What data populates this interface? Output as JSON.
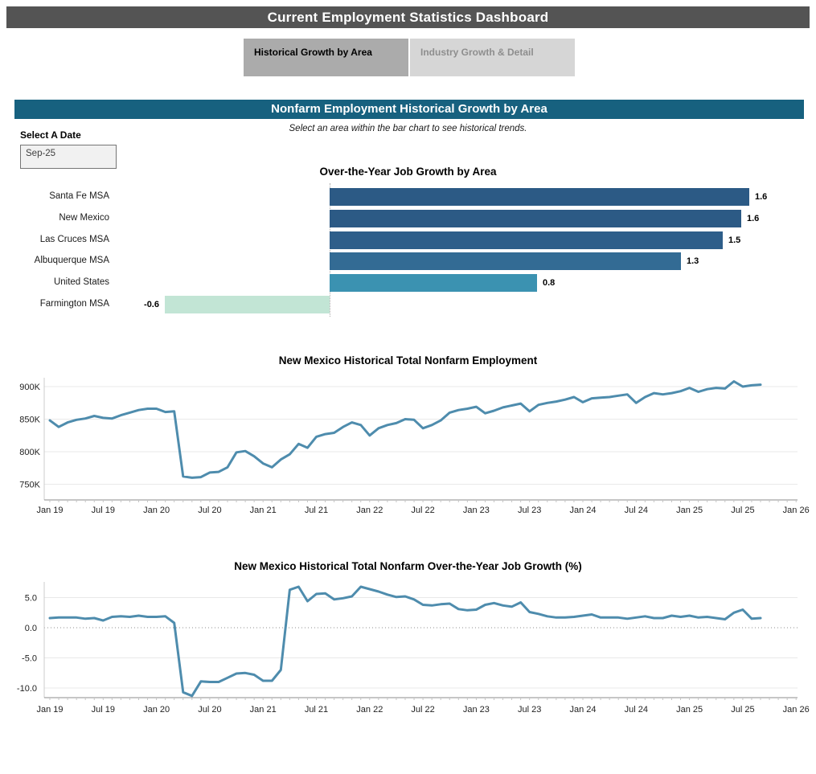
{
  "header": {
    "title": "Current Employment Statistics Dashboard"
  },
  "tabs": [
    {
      "label": "Historical Growth by Area",
      "active": true
    },
    {
      "label": "Industry Growth & Detail",
      "active": false
    }
  ],
  "section_banner": "Nonfarm Employment Historical Growth by Area",
  "date_filter": {
    "label": "Select A Date",
    "value": "Sep-25"
  },
  "instruction": "Select an area within the bar chart to see historical trends.",
  "colors": {
    "header_bg": "#545454",
    "banner_bg": "#17617f",
    "tab_active_bg": "#ababab",
    "tab_inactive_bg": "#d6d6d6",
    "line_stroke": "#4e8cad",
    "gridline": "#e9e9e9",
    "axis_line": "#8c8c8c",
    "bar_positive_dark": "#2c5a85",
    "bar_positive_mid": "#3b92b1",
    "bar_negative_light": "#c2e5d5"
  },
  "chart_data": [
    {
      "type": "bar",
      "title": "Over-the-Year Job Growth by Area",
      "categories": [
        "Santa Fe MSA",
        "New Mexico",
        "Las Cruces MSA",
        "Albuquerque MSA",
        "United States",
        "Farmington MSA"
      ],
      "values": [
        1.6,
        1.6,
        1.5,
        1.3,
        0.8,
        -0.6
      ],
      "values_precise": [
        1.6,
        1.57,
        1.5,
        1.34,
        0.79,
        -0.63
      ],
      "bar_colors": [
        "#2c5a85",
        "#2c5a85",
        "#2e5e8a",
        "#336b94",
        "#3b92b1",
        "#c2e5d5"
      ],
      "xlim": [
        -0.7,
        1.7
      ],
      "legend": "none",
      "grid": "zero-line-dotted"
    },
    {
      "type": "line",
      "title": "New Mexico Historical Total Nonfarm Employment",
      "x_start": "Jan 2019",
      "x_end": "Sep 2025",
      "x_tick_labels": [
        "Jan 19",
        "Jul 19",
        "Jan 20",
        "Jul 20",
        "Jan 21",
        "Jul 21",
        "Jan 22",
        "Jul 22",
        "Jan 23",
        "Jul 23",
        "Jan 24",
        "Jul 24",
        "Jan 25",
        "Jul 25",
        "Jan 26"
      ],
      "x_tick_months": [
        0,
        6,
        12,
        18,
        24,
        30,
        36,
        42,
        48,
        54,
        60,
        66,
        72,
        78,
        84
      ],
      "yticks": [
        {
          "value": 900,
          "label": "900K"
        },
        {
          "value": 850,
          "label": "850K"
        },
        {
          "value": 800,
          "label": "800K"
        },
        {
          "value": 750,
          "label": "750K"
        }
      ],
      "ylim": [
        725,
        920
      ],
      "unit": "thousands of jobs",
      "values": [
        848,
        838,
        845,
        849,
        851,
        855,
        852,
        851,
        856,
        860,
        864,
        866,
        866,
        861,
        862,
        762,
        760,
        761,
        768,
        769,
        776,
        799,
        801,
        793,
        782,
        776,
        788,
        796,
        812,
        806,
        823,
        827,
        829,
        838,
        845,
        841,
        825,
        836,
        841,
        844,
        850,
        849,
        836,
        841,
        848,
        860,
        864,
        866,
        869,
        859,
        863,
        868,
        871,
        874,
        862,
        872,
        875,
        877,
        880,
        884,
        876,
        882,
        883,
        884,
        886,
        888,
        875,
        884,
        890,
        888,
        890,
        893,
        898,
        892,
        896,
        898,
        897,
        908,
        900,
        902,
        903
      ]
    },
    {
      "type": "line",
      "title": "New Mexico Historical Total Nonfarm Over-the-Year Job Growth (%)",
      "x_start": "Jan 2019",
      "x_end": "Sep 2025",
      "x_tick_labels": [
        "Jan 19",
        "Jul 19",
        "Jan 20",
        "Jul 20",
        "Jan 21",
        "Jul 21",
        "Jan 22",
        "Jul 22",
        "Jan 23",
        "Jul 23",
        "Jan 24",
        "Jul 24",
        "Jan 25",
        "Jul 25",
        "Jan 26"
      ],
      "x_tick_months": [
        0,
        6,
        12,
        18,
        24,
        30,
        36,
        42,
        48,
        54,
        60,
        66,
        72,
        78,
        84
      ],
      "yticks": [
        {
          "value": 5,
          "label": "5.0"
        },
        {
          "value": 0,
          "label": "0.0"
        },
        {
          "value": -5,
          "label": "-5.0"
        },
        {
          "value": -10,
          "label": "-10.0"
        }
      ],
      "ylim": [
        -11.8,
        7.3
      ],
      "unit": "percent",
      "zero_line": "dotted",
      "values": [
        1.6,
        1.7,
        1.7,
        1.7,
        1.5,
        1.6,
        1.2,
        1.8,
        1.9,
        1.8,
        2.0,
        1.8,
        1.8,
        1.9,
        0.8,
        -10.7,
        -11.3,
        -8.9,
        -9.0,
        -9.0,
        -8.3,
        -7.6,
        -7.5,
        -7.8,
        -8.8,
        -8.8,
        -7.0,
        6.3,
        6.8,
        4.4,
        5.6,
        5.7,
        4.7,
        4.9,
        5.2,
        6.8,
        6.4,
        6.0,
        5.5,
        5.1,
        5.2,
        4.7,
        3.8,
        3.7,
        3.9,
        4.0,
        3.1,
        2.9,
        3.0,
        3.8,
        4.1,
        3.7,
        3.5,
        4.2,
        2.6,
        2.3,
        1.9,
        1.7,
        1.7,
        1.8,
        2.0,
        2.2,
        1.7,
        1.7,
        1.7,
        1.5,
        1.7,
        1.9,
        1.6,
        1.6,
        2.0,
        1.8,
        2.0,
        1.7,
        1.8,
        1.6,
        1.4,
        2.5,
        3.0,
        1.5,
        1.6
      ]
    }
  ]
}
